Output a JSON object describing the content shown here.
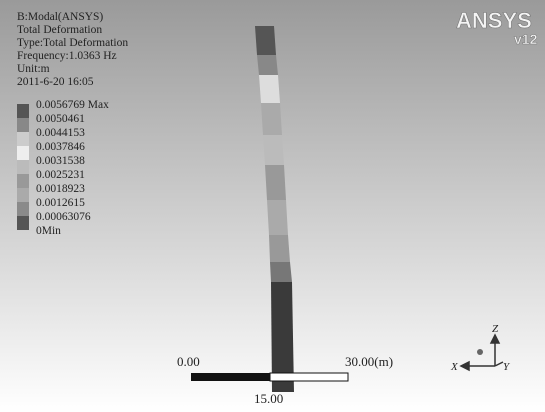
{
  "header": {
    "lines": [
      "B:Modal(ANSYS)",
      "Total Deformation",
      "Type:Total Deformation",
      "Frequency:1.0363 Hz",
      "Unit:m",
      "2011-6-20 16:05"
    ]
  },
  "legend": {
    "entries": [
      "0.0056769 Max",
      "0.0050461",
      "0.0044153",
      "0.0037846",
      "0.0031538",
      "0.0025231",
      "0.0018923",
      "0.0012615",
      "0.00063076",
      "0Min"
    ]
  },
  "logo": {
    "brand": "ANSYS",
    "version": "v12"
  },
  "scale_bar": {
    "left": "0.00",
    "right": "30.00(m)",
    "middle": "15.00"
  },
  "triad": {
    "z": "Z",
    "x": "X",
    "y": "Y"
  }
}
